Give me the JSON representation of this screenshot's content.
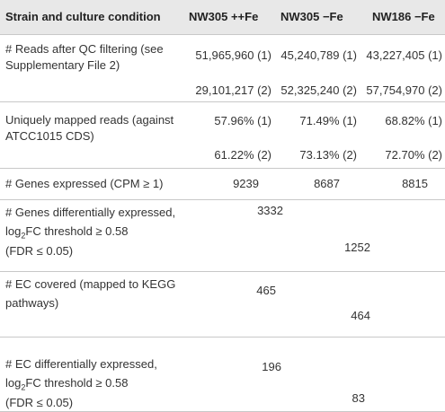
{
  "table": {
    "header": [
      "Strain and culture condition",
      "NW305 ++Fe",
      "NW305 −Fe",
      "NW186 −Fe"
    ],
    "rows": [
      {
        "label": [
          "# Reads after QC filtering (see",
          "Supplementary File 2)"
        ],
        "values": [
          [
            "51,965,960 (1)",
            "29,101,217 (2)"
          ],
          [
            "45,240,789 (1)",
            "52,325,240 (2)"
          ],
          [
            "43,227,405 (1)",
            "57,754,970 (2)"
          ]
        ]
      },
      {
        "label": [
          "Uniquely mapped reads (against",
          "ATCC1015 CDS)"
        ],
        "values": [
          [
            "57.96% (1)",
            "61.22% (2)"
          ],
          [
            "71.49% (1)",
            "73.13% (2)"
          ],
          [
            "68.82% (1)",
            "72.70% (2)"
          ]
        ]
      },
      {
        "label": [
          "# Genes expressed (CPM ≥ 1)"
        ],
        "values": [
          9239,
          8687,
          8815
        ]
      },
      {
        "label": [
          "# Genes differentially expressed,",
          "log",
          "2",
          "FC threshold ≥ 0.58",
          "(FDR ≤ 0.05)"
        ],
        "values": [
          3332,
          1252
        ]
      },
      {
        "label": [
          "# EC covered (mapped to KEGG",
          "pathways)"
        ],
        "values": [
          465,
          464
        ]
      },
      {
        "label": [
          "# EC differentially expressed,",
          "log",
          "2",
          "FC threshold ≥ 0.58",
          "(FDR ≤ 0.05)"
        ],
        "values": [
          196,
          83
        ]
      }
    ]
  }
}
